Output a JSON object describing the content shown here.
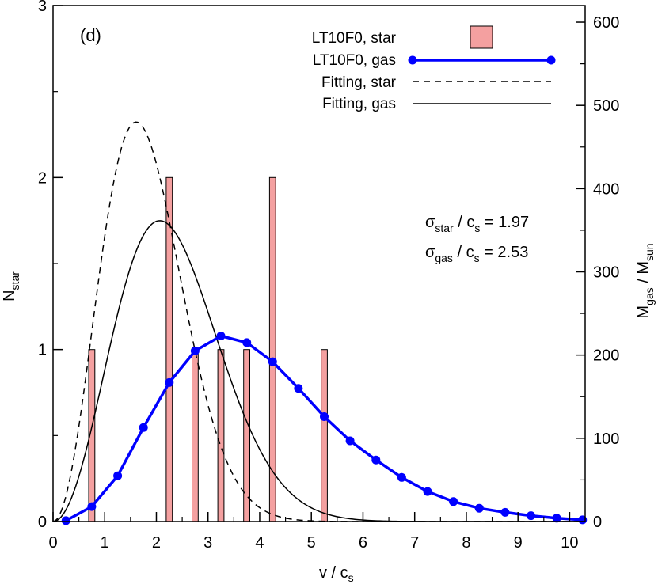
{
  "chart_data": {
    "type": "bar",
    "panel_label": "(d)",
    "xlabel": "v / c",
    "xlabel_sub": "s",
    "ylabel_left": "N",
    "ylabel_left_sub": "star",
    "ylabel_right": "M",
    "ylabel_right_sub1": "gas",
    "ylabel_right_mid": " / M",
    "ylabel_right_sub2": "sun",
    "xlim": [
      0,
      10.3
    ],
    "ylim_left": [
      0,
      3
    ],
    "ylim_right": [
      0,
      620
    ],
    "x_ticks": [
      0,
      1,
      2,
      3,
      4,
      5,
      6,
      7,
      8,
      9,
      10
    ],
    "y_left_ticks": [
      0,
      1,
      2,
      3
    ],
    "y_right_ticks": [
      0,
      100,
      200,
      300,
      400,
      500,
      600
    ],
    "colors": {
      "bar_fill": "#f4a0a0",
      "bar_edge": "#000000",
      "gas_line": "#0000ff",
      "fit": "#000000"
    },
    "star_bars": {
      "name": "LT10F0, star",
      "width": 0.12,
      "x": [
        0.75,
        2.25,
        2.75,
        3.25,
        3.75,
        4.25,
        5.25
      ],
      "values": [
        1,
        2,
        1,
        1,
        1,
        2,
        1
      ]
    },
    "gas_series": {
      "name": "LT10F0, gas",
      "x": [
        0.25,
        0.75,
        1.25,
        1.75,
        2.25,
        2.75,
        3.25,
        3.75,
        4.25,
        4.75,
        5.25,
        5.75,
        6.25,
        6.75,
        7.25,
        7.75,
        8.25,
        8.75,
        9.25,
        9.75,
        10.25
      ],
      "values": [
        1,
        18,
        55,
        113,
        167,
        205,
        223,
        215,
        192,
        160,
        126,
        97,
        74,
        53,
        36,
        24,
        16,
        11,
        7,
        4,
        2
      ]
    },
    "fit_star": {
      "name": "Fitting, star",
      "sigma": 1.97,
      "axis": "left"
    },
    "fit_gas": {
      "name": "Fitting, gas",
      "sigma": 2.53,
      "axis": "right"
    },
    "legend": [
      {
        "label": "LT10F0, star"
      },
      {
        "label": "LT10F0, gas"
      },
      {
        "label": "Fitting, star"
      },
      {
        "label": "Fitting, gas"
      }
    ],
    "legend_position": "top-right",
    "annotations": [
      {
        "sym": "σ",
        "sub": "star",
        "mid": " / c",
        "sub2": "s",
        "value": " = 1.97"
      },
      {
        "sym": "σ",
        "sub": "gas",
        "mid": " / c",
        "sub2": "s",
        "value": " = 2.53"
      }
    ],
    "grid": false
  }
}
